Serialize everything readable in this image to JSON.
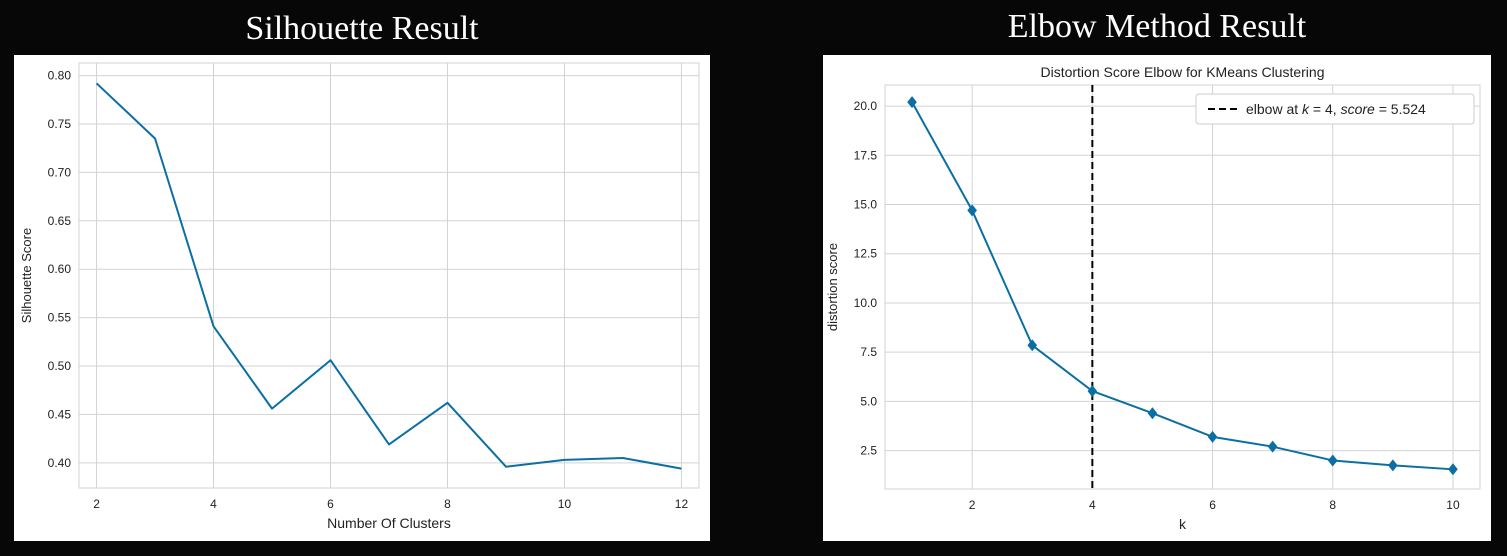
{
  "panels": {
    "left_title": "Silhouette Result",
    "right_title": "Elbow Method Result"
  },
  "colors": {
    "page_background": "#070707",
    "series": "#0b6fa4",
    "grid": "#d3d3d3",
    "elbow_line": "#000000"
  },
  "chart_data": [
    {
      "type": "line",
      "title": "",
      "xlabel": "Number Of Clusters",
      "ylabel": "Silhouette Score",
      "x": [
        2,
        3,
        4,
        5,
        6,
        7,
        8,
        9,
        10,
        11,
        12
      ],
      "values": [
        0.792,
        0.735,
        0.541,
        0.456,
        0.506,
        0.419,
        0.462,
        0.396,
        0.403,
        0.405,
        0.394
      ],
      "xlim": [
        1.7,
        12.3
      ],
      "ylim": [
        0.374,
        0.813
      ],
      "xticks": [
        2,
        4,
        6,
        8,
        10,
        12
      ],
      "xtick_labels": [
        "2",
        "4",
        "6",
        "8",
        "10",
        "12"
      ],
      "yticks": [
        0.4,
        0.45,
        0.5,
        0.55,
        0.6,
        0.65,
        0.7,
        0.75,
        0.8
      ],
      "ytick_labels": [
        "0.40",
        "0.45",
        "0.50",
        "0.55",
        "0.60",
        "0.65",
        "0.70",
        "0.75",
        "0.80"
      ],
      "grid": true,
      "markers": false
    },
    {
      "type": "line",
      "title": "Distortion Score Elbow for KMeans Clustering",
      "xlabel": "k",
      "ylabel": "distortion score",
      "x": [
        1,
        2,
        3,
        4,
        5,
        6,
        7,
        8,
        9,
        10
      ],
      "values": [
        20.2,
        14.7,
        7.85,
        5.524,
        4.4,
        3.2,
        2.7,
        2.0,
        1.75,
        1.55
      ],
      "xlim": [
        0.55,
        10.45
      ],
      "ylim": [
        0.55,
        21.07
      ],
      "xticks": [
        2,
        4,
        6,
        8,
        10
      ],
      "xtick_labels": [
        "2",
        "4",
        "6",
        "8",
        "10"
      ],
      "yticks": [
        2.5,
        5.0,
        7.5,
        10.0,
        12.5,
        15.0,
        17.5,
        20.0
      ],
      "ytick_labels": [
        "2.5",
        "5.0",
        "7.5",
        "10.0",
        "12.5",
        "15.0",
        "17.5",
        "20.0"
      ],
      "grid": true,
      "markers": true,
      "marker": "diamond",
      "elbow": {
        "k": 4,
        "score": 5.524
      },
      "legend": {
        "position": "top-right",
        "prefix": "elbow at ",
        "k_symbol": "k",
        "k_text": " = 4, ",
        "score_symbol": "score",
        "score_text": " = 5.524"
      }
    }
  ]
}
